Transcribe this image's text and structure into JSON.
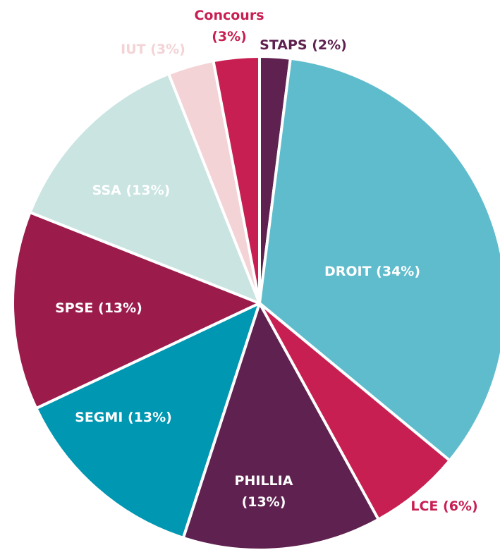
{
  "chart_data": {
    "type": "pie",
    "values": [
      2,
      34,
      6,
      13,
      13,
      13,
      13,
      3,
      3
    ],
    "value_labels": [
      "STAPS (2%)",
      "DROIT (34%)",
      "LCE (6%)",
      "PHILLIA\n(13%)",
      "SEGMI (13%)",
      "SPSE (13%)",
      "SSA (13%)",
      "IUT (3%)",
      "Concours\n(3%)"
    ],
    "colors": [
      "#5e2150",
      "#5fbccc",
      "#c81f52",
      "#5e2150",
      "#0097b2",
      "#9b1b4b",
      "#c9e4e1",
      "#f3d3d6",
      "#c81f52"
    ]
  }
}
